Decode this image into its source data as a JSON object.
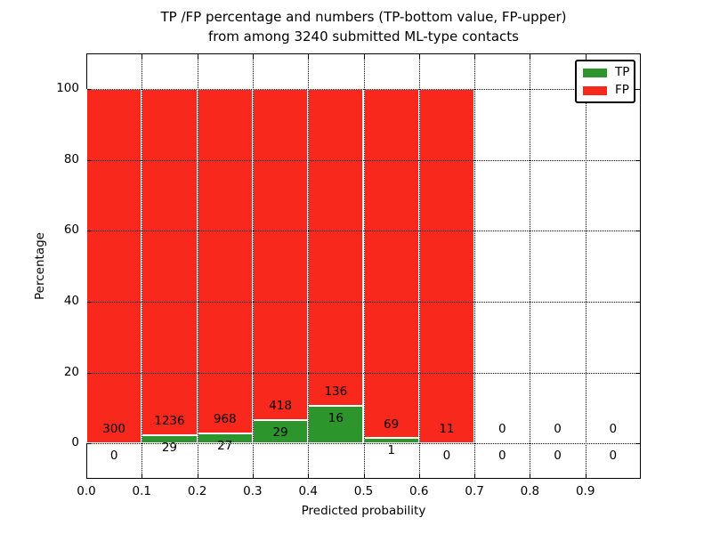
{
  "figure": {
    "title_line1": "TP /FP percentage and numbers (TP-bottom value, FP-upper)",
    "title_line2": "from among 3240 submitted ML-type contacts",
    "background_color": "#ffffff",
    "text_color": "#000000"
  },
  "chart_data": {
    "type": "bar",
    "stacked": true,
    "title": "TP /FP percentage and numbers (TP-bottom value, FP-upper)\nfrom among 3240 submitted ML-type contacts",
    "xlabel": "Predicted probability",
    "ylabel": "Percentage",
    "xlim": [
      0.0,
      1.0
    ],
    "ylim": [
      -10,
      110
    ],
    "xticks": [
      "0.0",
      "0.1",
      "0.2",
      "0.3",
      "0.4",
      "0.5",
      "0.6",
      "0.7",
      "0.8",
      "0.9"
    ],
    "yticks": [
      "0",
      "20",
      "40",
      "60",
      "80",
      "100"
    ],
    "grid": true,
    "grid_style": "dotted",
    "total_submitted": 3240,
    "bin_width": 0.1,
    "categories": [
      "0.0-0.1",
      "0.1-0.2",
      "0.2-0.3",
      "0.3-0.4",
      "0.4-0.5",
      "0.5-0.6",
      "0.6-0.7",
      "0.7-0.8",
      "0.8-0.9",
      "0.9-1.0"
    ],
    "bins": [
      {
        "x_start": 0.0,
        "tp_count": 0,
        "fp_count": 300,
        "tp_pct": 0.0,
        "fp_pct": 100.0,
        "has_bar": true
      },
      {
        "x_start": 0.1,
        "tp_count": 29,
        "fp_count": 1236,
        "tp_pct": 2.29,
        "fp_pct": 97.71,
        "has_bar": true
      },
      {
        "x_start": 0.2,
        "tp_count": 27,
        "fp_count": 968,
        "tp_pct": 2.71,
        "fp_pct": 97.29,
        "has_bar": true
      },
      {
        "x_start": 0.3,
        "tp_count": 29,
        "fp_count": 418,
        "tp_pct": 6.49,
        "fp_pct": 93.51,
        "has_bar": true
      },
      {
        "x_start": 0.4,
        "tp_count": 16,
        "fp_count": 136,
        "tp_pct": 10.53,
        "fp_pct": 89.47,
        "has_bar": true
      },
      {
        "x_start": 0.5,
        "tp_count": 1,
        "fp_count": 69,
        "tp_pct": 1.43,
        "fp_pct": 98.57,
        "has_bar": true
      },
      {
        "x_start": 0.6,
        "tp_count": 0,
        "fp_count": 11,
        "tp_pct": 0.0,
        "fp_pct": 100.0,
        "has_bar": true
      },
      {
        "x_start": 0.7,
        "tp_count": 0,
        "fp_count": 0,
        "tp_pct": 0.0,
        "fp_pct": 0.0,
        "has_bar": false
      },
      {
        "x_start": 0.8,
        "tp_count": 0,
        "fp_count": 0,
        "tp_pct": 0.0,
        "fp_pct": 0.0,
        "has_bar": false
      },
      {
        "x_start": 0.9,
        "tp_count": 0,
        "fp_count": 0,
        "tp_pct": 0.0,
        "fp_pct": 0.0,
        "has_bar": false
      }
    ],
    "series": [
      {
        "name": "TP",
        "color": "#2c962c",
        "values_pct": [
          0.0,
          2.29,
          2.71,
          6.49,
          10.53,
          1.43,
          0.0,
          0.0,
          0.0,
          0.0
        ]
      },
      {
        "name": "FP",
        "color": "#f8281c",
        "values_pct": [
          100.0,
          97.71,
          97.29,
          93.51,
          89.47,
          98.57,
          100.0,
          0.0,
          0.0,
          0.0
        ]
      }
    ],
    "legend": {
      "position": "upper right",
      "entries": [
        {
          "label": "TP",
          "color": "#2c962c"
        },
        {
          "label": "FP",
          "color": "#f8281c"
        }
      ]
    }
  }
}
